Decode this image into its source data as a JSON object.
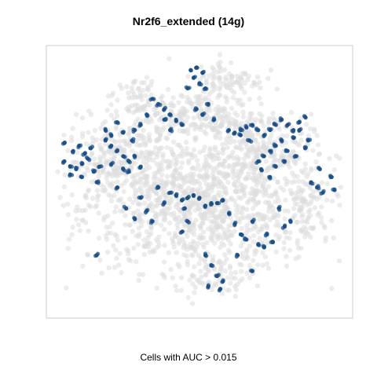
{
  "chart_data": {
    "type": "scatter",
    "title": "Nr2f6_extended (14g)",
    "xlabel": "Cells with AUC > 0.015",
    "ylabel": "",
    "xlim": [
      0,
      100
    ],
    "ylim": [
      0,
      100
    ],
    "axes_visible": false,
    "grid": false,
    "legend": "none",
    "series": [
      {
        "role": "all cells",
        "color": "#dcdcdc",
        "opacity": 0.55,
        "cloud_regions": [
          {
            "cx": 50,
            "cy": 40,
            "rx": 40,
            "ry": 24,
            "n": 1000
          },
          {
            "cx": 24,
            "cy": 58,
            "rx": 20,
            "ry": 16,
            "n": 300
          },
          {
            "cx": 68,
            "cy": 62,
            "rx": 20,
            "ry": 14,
            "n": 260
          },
          {
            "cx": 50,
            "cy": 75,
            "rx": 24,
            "ry": 10,
            "n": 230
          },
          {
            "cx": 60,
            "cy": 89,
            "rx": 12,
            "ry": 8,
            "n": 90
          },
          {
            "cx": 86,
            "cy": 43,
            "rx": 7,
            "ry": 16,
            "n": 80
          },
          {
            "cx": 55,
            "cy": 14,
            "rx": 14,
            "ry": 7,
            "n": 70
          },
          {
            "cx": 30,
            "cy": 82,
            "rx": 8,
            "ry": 8,
            "n": 60
          }
        ]
      },
      {
        "role": "cells with AUC > 0.015",
        "color": "#1a4f86",
        "points": [
          [
            47,
            93
          ],
          [
            49,
            94
          ],
          [
            51,
            92
          ],
          [
            48,
            90
          ],
          [
            50,
            88
          ],
          [
            52,
            86
          ],
          [
            46,
            86
          ],
          [
            53,
            80
          ],
          [
            34,
            82
          ],
          [
            36,
            80
          ],
          [
            38,
            78
          ],
          [
            40,
            76
          ],
          [
            42,
            74
          ],
          [
            44,
            72
          ],
          [
            38,
            74
          ],
          [
            28,
            70
          ],
          [
            60,
            70
          ],
          [
            62,
            69
          ],
          [
            64,
            70
          ],
          [
            66,
            71
          ],
          [
            68,
            72
          ],
          [
            70,
            70
          ],
          [
            72,
            68
          ],
          [
            74,
            70
          ],
          [
            76,
            72
          ],
          [
            78,
            74
          ],
          [
            80,
            72
          ],
          [
            82,
            70
          ],
          [
            84,
            73
          ],
          [
            86,
            75
          ],
          [
            84,
            70
          ],
          [
            82,
            67
          ],
          [
            78,
            66
          ],
          [
            76,
            64
          ],
          [
            80,
            62
          ],
          [
            74,
            62
          ],
          [
            72,
            60
          ],
          [
            70,
            58
          ],
          [
            64,
            68
          ],
          [
            67,
            66
          ],
          [
            87,
            66
          ],
          [
            86,
            63
          ],
          [
            83,
            60
          ],
          [
            79,
            58
          ],
          [
            76,
            56
          ],
          [
            71,
            55
          ],
          [
            74,
            52
          ],
          [
            4,
            58
          ],
          [
            6,
            56
          ],
          [
            8,
            55
          ],
          [
            10,
            57
          ],
          [
            12,
            59
          ],
          [
            6,
            53
          ],
          [
            10,
            52
          ],
          [
            14,
            54
          ],
          [
            7,
            62
          ],
          [
            9,
            64
          ],
          [
            11,
            61
          ],
          [
            13,
            63
          ],
          [
            4,
            65
          ],
          [
            16,
            56
          ],
          [
            15,
            50
          ],
          [
            18,
            66
          ],
          [
            20,
            64
          ],
          [
            22,
            62
          ],
          [
            24,
            60
          ],
          [
            26,
            58
          ],
          [
            24,
            55
          ],
          [
            20,
            57
          ],
          [
            26,
            54
          ],
          [
            28,
            60
          ],
          [
            30,
            56
          ],
          [
            18,
            70
          ],
          [
            20,
            68
          ],
          [
            24,
            69
          ],
          [
            27,
            66
          ],
          [
            22,
            73
          ],
          [
            40,
            46
          ],
          [
            42,
            45
          ],
          [
            44,
            43
          ],
          [
            38,
            42
          ],
          [
            36,
            48
          ],
          [
            46,
            44
          ],
          [
            50,
            44
          ],
          [
            52,
            41
          ],
          [
            54,
            42
          ],
          [
            56,
            42
          ],
          [
            58,
            43
          ],
          [
            48,
            45
          ],
          [
            60,
            38
          ],
          [
            62,
            34
          ],
          [
            64,
            30
          ],
          [
            66,
            28
          ],
          [
            70,
            26
          ],
          [
            72,
            25
          ],
          [
            75,
            27
          ],
          [
            73,
            30
          ],
          [
            79,
            33
          ],
          [
            81,
            35
          ],
          [
            77,
            40
          ],
          [
            68,
            35
          ],
          [
            88,
            50
          ],
          [
            90,
            48
          ],
          [
            92,
            46
          ],
          [
            95,
            52
          ],
          [
            96,
            47
          ],
          [
            91,
            55
          ],
          [
            22,
            48
          ],
          [
            25,
            40
          ],
          [
            28,
            36
          ],
          [
            30,
            44
          ],
          [
            32,
            39
          ],
          [
            34,
            35
          ],
          [
            54,
            18
          ],
          [
            56,
            14
          ],
          [
            58,
            12
          ],
          [
            53,
            10
          ],
          [
            57,
            9
          ],
          [
            52,
            22
          ],
          [
            49,
            78
          ],
          [
            51,
            76
          ],
          [
            55,
            74
          ],
          [
            40,
            70
          ],
          [
            30,
            72
          ],
          [
            32,
            76
          ],
          [
            15,
            22
          ],
          [
            68,
            16
          ],
          [
            63,
            22
          ],
          [
            44,
            31
          ],
          [
            46,
            35
          ],
          [
            45,
            40
          ]
        ]
      }
    ]
  }
}
